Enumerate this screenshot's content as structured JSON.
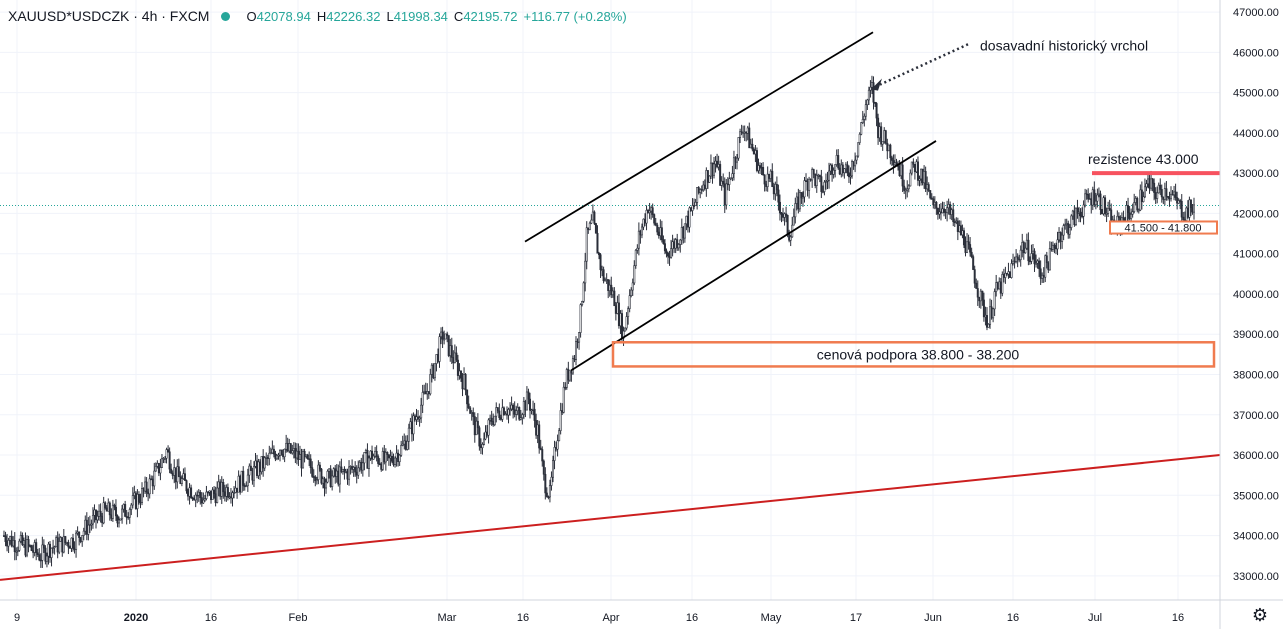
{
  "header": {
    "symbol": "XAUUSD*USDCZK · 4h · FXCM",
    "open_label": "O",
    "open": "42078.94",
    "high_label": "H",
    "high": "42226.32",
    "low_label": "L",
    "low": "41998.34",
    "close_label": "C",
    "close": "42195.72",
    "change": "+116.77 (+0.28%)",
    "status_color": "#26a69a"
  },
  "settings_icon": "gear-icon",
  "chart_data": {
    "type": "candlestick",
    "title": "",
    "xlabel": "",
    "ylabel": "",
    "ylim": [
      32400,
      47300
    ],
    "y_ticks": [
      "47000.00",
      "46000.00",
      "45000.00",
      "44000.00",
      "43000.00",
      "42000.00",
      "41000.00",
      "40000.00",
      "39000.00",
      "38000.00",
      "37000.00",
      "36000.00",
      "35000.00",
      "34000.00",
      "33000.00"
    ],
    "x_ticks": [
      "9",
      "2020",
      "16",
      "Feb",
      "Mar",
      "16",
      "Apr",
      "16",
      "May",
      "17",
      "Jun",
      "16",
      "Jul",
      "16"
    ],
    "last_price": 42195.72,
    "price_path": [
      [
        0,
        34000
      ],
      [
        8,
        33800
      ],
      [
        16,
        33700
      ],
      [
        24,
        33500
      ],
      [
        30,
        33700
      ],
      [
        38,
        33800
      ],
      [
        46,
        33900
      ],
      [
        56,
        34300
      ],
      [
        66,
        34600
      ],
      [
        76,
        34500
      ],
      [
        84,
        34800
      ],
      [
        92,
        35100
      ],
      [
        100,
        35600
      ],
      [
        106,
        36100
      ],
      [
        112,
        35500
      ],
      [
        120,
        35200
      ],
      [
        130,
        34900
      ],
      [
        140,
        35100
      ],
      [
        150,
        35200
      ],
      [
        160,
        35500
      ],
      [
        170,
        35800
      ],
      [
        180,
        36200
      ],
      [
        190,
        36000
      ],
      [
        200,
        35700
      ],
      [
        210,
        35400
      ],
      [
        220,
        35500
      ],
      [
        230,
        35700
      ],
      [
        240,
        36000
      ],
      [
        250,
        35800
      ],
      [
        260,
        36200
      ],
      [
        268,
        36900
      ],
      [
        276,
        37600
      ],
      [
        282,
        38400
      ],
      [
        286,
        39000
      ],
      [
        292,
        38500
      ],
      [
        300,
        37800
      ],
      [
        306,
        36800
      ],
      [
        312,
        36200
      ],
      [
        318,
        36900
      ],
      [
        326,
        37200
      ],
      [
        334,
        37000
      ],
      [
        342,
        37400
      ],
      [
        348,
        36600
      ],
      [
        352,
        35400
      ],
      [
        356,
        35000
      ],
      [
        360,
        36300
      ],
      [
        366,
        37800
      ],
      [
        372,
        38500
      ],
      [
        376,
        39500
      ],
      [
        380,
        41400
      ],
      [
        384,
        41800
      ],
      [
        390,
        40500
      ],
      [
        398,
        39900
      ],
      [
        404,
        39000
      ],
      [
        408,
        40000
      ],
      [
        414,
        41400
      ],
      [
        420,
        42200
      ],
      [
        426,
        41600
      ],
      [
        432,
        41000
      ],
      [
        440,
        41400
      ],
      [
        448,
        42000
      ],
      [
        456,
        42800
      ],
      [
        464,
        43300
      ],
      [
        470,
        42400
      ],
      [
        476,
        43300
      ],
      [
        482,
        44200
      ],
      [
        488,
        43600
      ],
      [
        494,
        43000
      ],
      [
        500,
        42800
      ],
      [
        506,
        42200
      ],
      [
        512,
        41500
      ],
      [
        518,
        42300
      ],
      [
        526,
        43000
      ],
      [
        534,
        42600
      ],
      [
        542,
        43400
      ],
      [
        550,
        42900
      ],
      [
        556,
        43600
      ],
      [
        562,
        44700
      ],
      [
        566,
        45100
      ],
      [
        570,
        44100
      ],
      [
        576,
        43700
      ],
      [
        582,
        43300
      ],
      [
        588,
        42700
      ],
      [
        594,
        43200
      ],
      [
        600,
        42800
      ],
      [
        606,
        42100
      ],
      [
        614,
        42200
      ],
      [
        620,
        41700
      ],
      [
        626,
        41400
      ],
      [
        632,
        40600
      ],
      [
        638,
        39700
      ],
      [
        642,
        39300
      ],
      [
        646,
        40000
      ],
      [
        652,
        40300
      ],
      [
        658,
        40700
      ],
      [
        664,
        41200
      ],
      [
        670,
        41000
      ],
      [
        676,
        40500
      ],
      [
        682,
        40900
      ],
      [
        688,
        41500
      ],
      [
        694,
        41700
      ],
      [
        700,
        42000
      ],
      [
        706,
        42300
      ],
      [
        712,
        42500
      ],
      [
        718,
        42100
      ],
      [
        724,
        41600
      ],
      [
        730,
        41900
      ],
      [
        738,
        42200
      ],
      [
        746,
        42700
      ],
      [
        752,
        42500
      ],
      [
        758,
        42600
      ],
      [
        764,
        42300
      ],
      [
        770,
        42000
      ],
      [
        776,
        42200
      ]
    ],
    "annotations": {
      "peak_note": "dosavadní historický vrchol",
      "resistance_label": "rezistence 43.000",
      "support_zone_label": "cenová podpora 38.800 - 38.200",
      "small_zone_label": "41.500 - 41.800"
    },
    "resistance_level": 43000,
    "support_zone": [
      38200,
      38800
    ],
    "small_zone": [
      41500,
      41800
    ],
    "colors": {
      "up": "#26a69a",
      "down": "#131722",
      "candle": "#2a2e39",
      "trendline": "#cc1f1f",
      "resistance": "#f7525f",
      "zone": "#f07b4f",
      "channel": "#000000",
      "grid": "#f0f3fa"
    }
  }
}
